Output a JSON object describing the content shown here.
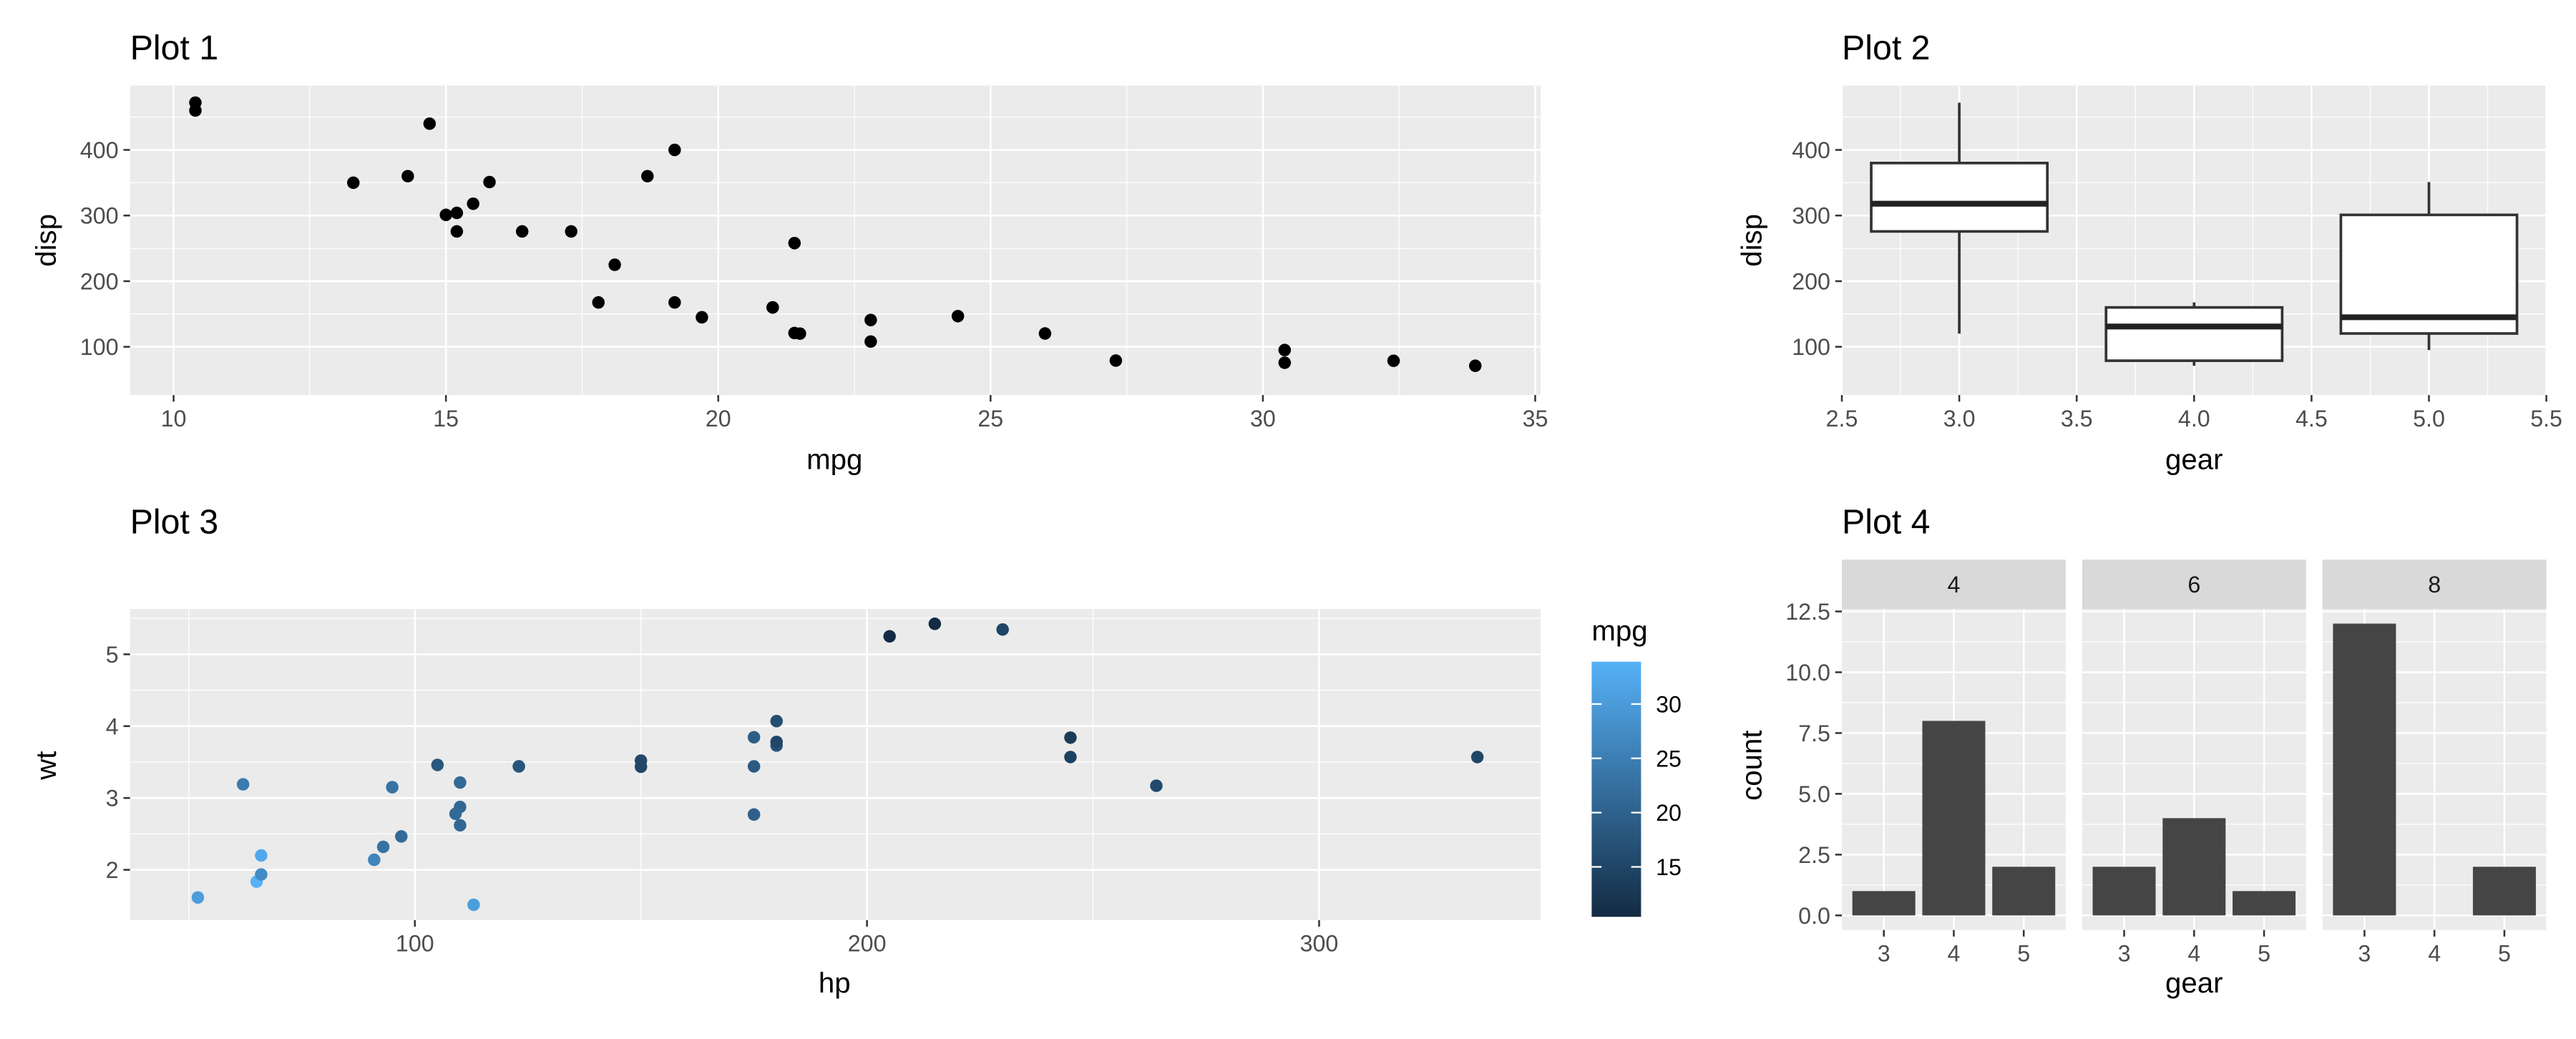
{
  "chart_data": [
    {
      "id": "plot1",
      "type": "scatter",
      "title": "Plot 1",
      "xlabel": "mpg",
      "ylabel": "disp",
      "xlim": [
        9.2,
        35.1
      ],
      "ylim": [
        26.5,
        498
      ],
      "xticks": [
        10,
        15,
        20,
        25,
        30,
        35
      ],
      "yticks": [
        100,
        200,
        300,
        400
      ],
      "grid": true,
      "point_color": "#000000",
      "points": [
        {
          "x": 21.0,
          "y": 160
        },
        {
          "x": 21.0,
          "y": 160
        },
        {
          "x": 22.8,
          "y": 108
        },
        {
          "x": 21.4,
          "y": 258
        },
        {
          "x": 18.7,
          "y": 360
        },
        {
          "x": 18.1,
          "y": 225
        },
        {
          "x": 14.3,
          "y": 360
        },
        {
          "x": 24.4,
          "y": 146.7
        },
        {
          "x": 22.8,
          "y": 140.8
        },
        {
          "x": 19.2,
          "y": 167.6
        },
        {
          "x": 17.8,
          "y": 167.6
        },
        {
          "x": 16.4,
          "y": 275.8
        },
        {
          "x": 17.3,
          "y": 275.8
        },
        {
          "x": 15.2,
          "y": 275.8
        },
        {
          "x": 10.4,
          "y": 472
        },
        {
          "x": 10.4,
          "y": 460
        },
        {
          "x": 14.7,
          "y": 440
        },
        {
          "x": 32.4,
          "y": 78.7
        },
        {
          "x": 30.4,
          "y": 75.7
        },
        {
          "x": 33.9,
          "y": 71.1
        },
        {
          "x": 21.5,
          "y": 120.1
        },
        {
          "x": 15.5,
          "y": 318
        },
        {
          "x": 15.2,
          "y": 304
        },
        {
          "x": 13.3,
          "y": 350
        },
        {
          "x": 19.2,
          "y": 400
        },
        {
          "x": 27.3,
          "y": 79
        },
        {
          "x": 26.0,
          "y": 120.3
        },
        {
          "x": 30.4,
          "y": 95.1
        },
        {
          "x": 15.8,
          "y": 351
        },
        {
          "x": 19.7,
          "y": 145
        },
        {
          "x": 15.0,
          "y": 301
        },
        {
          "x": 21.4,
          "y": 121
        }
      ]
    },
    {
      "id": "plot2",
      "type": "box",
      "title": "Plot 2",
      "xlabel": "gear",
      "ylabel": "disp",
      "xlim": [
        2.5,
        5.5
      ],
      "ylim": [
        26.5,
        498
      ],
      "xticks": [
        2.5,
        3.0,
        3.5,
        4.0,
        4.5,
        5.0,
        5.5
      ],
      "xtick_labels": [
        "2.5",
        "3.0",
        "3.5",
        "4.0",
        "4.5",
        "5.0",
        "5.5"
      ],
      "yticks": [
        100,
        200,
        300,
        400
      ],
      "grid": true,
      "boxes": [
        {
          "x": 3,
          "min": 120.1,
          "q1": 275.8,
          "median": 318,
          "q3": 380,
          "max": 472
        },
        {
          "x": 4,
          "min": 71.1,
          "q1": 78.8,
          "median": 130.9,
          "q3": 160,
          "max": 167.6
        },
        {
          "x": 5,
          "min": 95.1,
          "q1": 120.3,
          "median": 145,
          "q3": 301,
          "max": 351
        }
      ]
    },
    {
      "id": "plot3",
      "type": "scatter",
      "title": "Plot 3",
      "xlabel": "hp",
      "ylabel": "wt",
      "xlim": [
        37,
        349
      ],
      "ylim": [
        1.3,
        5.63
      ],
      "xticks": [
        100,
        200,
        300
      ],
      "yticks": [
        2,
        3,
        4,
        5
      ],
      "grid": true,
      "legend": {
        "title": "mpg",
        "position": "right",
        "range": [
          10.4,
          33.9
        ],
        "ticks": [
          15,
          20,
          25,
          30
        ],
        "low_color": "#132B43",
        "high_color": "#56B1F7"
      },
      "points": [
        {
          "x": 110,
          "y": 2.62,
          "c": 21.0
        },
        {
          "x": 110,
          "y": 2.875,
          "c": 21.0
        },
        {
          "x": 93,
          "y": 2.32,
          "c": 22.8
        },
        {
          "x": 110,
          "y": 3.215,
          "c": 21.4
        },
        {
          "x": 175,
          "y": 3.44,
          "c": 18.7
        },
        {
          "x": 105,
          "y": 3.46,
          "c": 18.1
        },
        {
          "x": 245,
          "y": 3.57,
          "c": 14.3
        },
        {
          "x": 62,
          "y": 3.19,
          "c": 24.4
        },
        {
          "x": 95,
          "y": 3.15,
          "c": 22.8
        },
        {
          "x": 123,
          "y": 3.44,
          "c": 19.2
        },
        {
          "x": 123,
          "y": 3.44,
          "c": 17.8
        },
        {
          "x": 180,
          "y": 4.07,
          "c": 16.4
        },
        {
          "x": 180,
          "y": 3.73,
          "c": 17.3
        },
        {
          "x": 180,
          "y": 3.78,
          "c": 15.2
        },
        {
          "x": 205,
          "y": 5.25,
          "c": 10.4
        },
        {
          "x": 215,
          "y": 5.424,
          "c": 10.4
        },
        {
          "x": 230,
          "y": 5.345,
          "c": 14.7
        },
        {
          "x": 66,
          "y": 2.2,
          "c": 32.4
        },
        {
          "x": 52,
          "y": 1.615,
          "c": 30.4
        },
        {
          "x": 65,
          "y": 1.835,
          "c": 33.9
        },
        {
          "x": 97,
          "y": 2.465,
          "c": 21.5
        },
        {
          "x": 150,
          "y": 3.52,
          "c": 15.5
        },
        {
          "x": 150,
          "y": 3.435,
          "c": 15.2
        },
        {
          "x": 245,
          "y": 3.84,
          "c": 13.3
        },
        {
          "x": 175,
          "y": 3.845,
          "c": 19.2
        },
        {
          "x": 66,
          "y": 1.935,
          "c": 27.3
        },
        {
          "x": 91,
          "y": 2.14,
          "c": 26.0
        },
        {
          "x": 113,
          "y": 1.513,
          "c": 30.4
        },
        {
          "x": 264,
          "y": 3.17,
          "c": 15.8
        },
        {
          "x": 175,
          "y": 2.77,
          "c": 19.7
        },
        {
          "x": 335,
          "y": 3.57,
          "c": 15.0
        },
        {
          "x": 109,
          "y": 2.78,
          "c": 21.4
        }
      ]
    },
    {
      "id": "plot4",
      "type": "bar",
      "title": "Plot 4",
      "xlabel": "gear",
      "ylabel": "count",
      "ylim": [
        -0.6,
        12.6
      ],
      "yticks": [
        0.0,
        2.5,
        5.0,
        7.5,
        10.0,
        12.5
      ],
      "ytick_labels": [
        "0.0",
        "2.5",
        "5.0",
        "7.5",
        "10.0",
        "12.5"
      ],
      "categories": [
        "3",
        "4",
        "5"
      ],
      "grid": true,
      "bar_color": "#454545",
      "facets": [
        {
          "label": "4",
          "values": [
            1,
            8,
            2
          ]
        },
        {
          "label": "6",
          "values": [
            2,
            4,
            1
          ]
        },
        {
          "label": "8",
          "values": [
            12,
            0,
            2
          ]
        }
      ]
    }
  ]
}
